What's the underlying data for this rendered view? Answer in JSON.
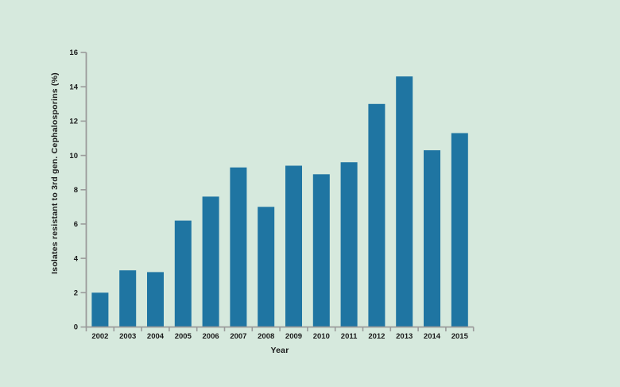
{
  "chart_data": {
    "type": "bar",
    "title": "",
    "xlabel": "Year",
    "ylabel": "Isolates resistant to 3rd gen. Cephalosporins (%)",
    "categories": [
      "2002",
      "2003",
      "2004",
      "2005",
      "2006",
      "2007",
      "2008",
      "2009",
      "2010",
      "2011",
      "2012",
      "2013",
      "2014",
      "2015"
    ],
    "values": [
      2.0,
      3.3,
      3.2,
      6.2,
      7.6,
      9.3,
      7.0,
      9.4,
      8.9,
      9.6,
      13.0,
      14.6,
      10.3,
      11.3
    ],
    "ylim": [
      0,
      16
    ],
    "y_ticks": [
      0,
      2,
      4,
      6,
      8,
      10,
      12,
      14,
      16
    ],
    "grid": false,
    "legend": "none",
    "colors": {
      "background": "#d6e9dd",
      "bar": "#1f75a2",
      "axis": "#9a9a9a",
      "text": "#1a1a1a"
    }
  }
}
